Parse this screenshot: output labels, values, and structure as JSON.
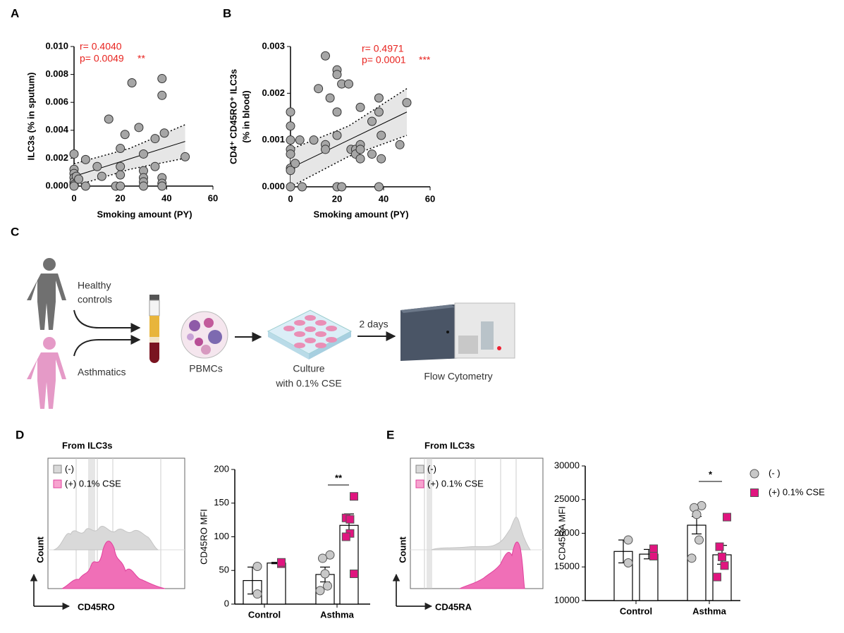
{
  "panels": [
    "A",
    "B",
    "C",
    "D",
    "E"
  ],
  "chart_data": [
    {
      "type": "scatter",
      "xlabel": "Smoking amount (PY)",
      "ylabel": [
        "ILC3s (% in sputum)"
      ],
      "xlim": [
        0,
        60
      ],
      "xticks": [
        0,
        20,
        40,
        60
      ],
      "ylim": [
        0,
        0.01
      ],
      "yticks": [
        {
          "value": 0,
          "label": "0.000"
        },
        {
          "value": 0.002,
          "label": "0.002"
        },
        {
          "value": 0.004,
          "label": "0.004"
        },
        {
          "value": 0.006,
          "label": "0.006"
        },
        {
          "value": 0.008,
          "label": "0.008"
        },
        {
          "value": 0.01,
          "label": "0.010"
        }
      ],
      "annotations": [
        "r= 0.4040",
        "p= 0.0049",
        "**"
      ],
      "series": [
        {
          "color": "#a6a6a6",
          "x": [
            0,
            0,
            0,
            0,
            0,
            0,
            0,
            1,
            2,
            5,
            5,
            10,
            12,
            15,
            18,
            20,
            20,
            20,
            20,
            22,
            25,
            28,
            30,
            30,
            30,
            30,
            30,
            35,
            35,
            38,
            38,
            38,
            38,
            38,
            39,
            48
          ],
          "y": [
            0.0023,
            0.0012,
            0.0009,
            0.0006,
            0.0003,
            0.0001,
            0,
            0.0007,
            0.0005,
            0.0019,
            0,
            0.0014,
            0.0007,
            0.0048,
            0,
            0.0027,
            0.0014,
            0.0008,
            0,
            0.0037,
            0.0074,
            0.0042,
            0.0023,
            0.0011,
            0.0006,
            0.0003,
            0,
            0.0034,
            0.0014,
            0.0077,
            0.0065,
            0.0006,
            0.0002,
            0,
            0.0038,
            0.0021
          ]
        }
      ],
      "fit": {
        "x": [
          0,
          24,
          48
        ],
        "y": [
          0.0007,
          0.00195,
          0.0032
        ],
        "lower": [
          0,
          0.0012,
          0.002
        ],
        "upper": [
          0.0016,
          0.0027,
          0.0044
        ]
      }
    },
    {
      "type": "scatter",
      "xlabel": "Smoking amount (PY)",
      "ylabel": [
        "CD4⁺ CD45RO⁺ ILC3s",
        "(% in blood)"
      ],
      "xlim": [
        0,
        60
      ],
      "xticks": [
        0,
        20,
        40,
        60
      ],
      "ylim": [
        0,
        0.003
      ],
      "yticks": [
        {
          "value": 0,
          "label": "0.000"
        },
        {
          "value": 0.001,
          "label": "0.001"
        },
        {
          "value": 0.002,
          "label": "0.002"
        },
        {
          "value": 0.003,
          "label": "0.003"
        }
      ],
      "annotations": [
        "r= 0.4971",
        "p= 0.0001",
        "***"
      ],
      "series": [
        {
          "color": "#a6a6a6",
          "x": [
            0,
            0,
            0,
            0,
            0,
            0,
            0,
            0,
            2,
            4,
            5,
            10,
            12,
            15,
            15,
            15,
            17,
            20,
            20,
            20,
            20,
            20,
            22,
            22,
            25,
            26,
            28,
            28,
            30,
            30,
            30,
            30,
            35,
            35,
            38,
            38,
            39,
            39,
            38,
            47,
            50
          ],
          "y": [
            0.0016,
            0.0013,
            0.001,
            0.0008,
            0.0007,
            0.0004,
            0.00035,
            0,
            0.0005,
            0.001,
            0,
            0.001,
            0.0021,
            0.0028,
            0.0009,
            0.0008,
            0.0019,
            0.0025,
            0.0024,
            0.0016,
            0.0011,
            0,
            0.0022,
            0,
            0.0022,
            0.0008,
            0.0008,
            0.0007,
            0.0017,
            0.0009,
            0.0008,
            0.0006,
            0.0014,
            0.0007,
            0.0019,
            0.0016,
            0.0011,
            0.0006,
            0,
            0.0009,
            0.0018
          ]
        }
      ],
      "fit": {
        "x": [
          0,
          25,
          50
        ],
        "y": [
          0.0004,
          0.001,
          0.0016
        ],
        "lower": [
          0,
          0.00065,
          0.0011
        ],
        "upper": [
          0.0008,
          0.0013,
          0.0021
        ]
      }
    },
    {
      "type": "bar",
      "ylabel": [
        "CD45RO MFI"
      ],
      "categories": [
        "Control",
        "Asthma"
      ],
      "ylim": [
        0,
        200
      ],
      "yticks": [
        0,
        50,
        100,
        150,
        200
      ],
      "annotations": [
        "**"
      ],
      "series": [
        {
          "color": "#c8c8c8",
          "marker": "circle",
          "values": [
            35,
            44
          ],
          "errors": [
            20,
            11
          ],
          "points": [
            [
              56,
              15
            ],
            [
              73,
              68,
              45,
              27,
              20
            ]
          ]
        },
        {
          "color": "#e0157f",
          "marker": "square",
          "values": [
            61,
            117
          ],
          "errors": [
            1,
            17
          ],
          "points": [
            [
              60,
              62
            ],
            [
              160,
              128,
              126,
              105,
              100,
              45
            ]
          ]
        }
      ]
    },
    {
      "type": "bar",
      "ylabel": [
        "CD45RA MFI"
      ],
      "categories": [
        "Control",
        "Asthma"
      ],
      "ylim": [
        10000,
        30000
      ],
      "yticks": [
        10000,
        15000,
        20000,
        25000,
        30000
      ],
      "annotations": [
        "*"
      ],
      "series": [
        {
          "name": "(- )",
          "color": "#c8c8c8",
          "marker": "circle",
          "values": [
            17300,
            21200
          ],
          "errors": [
            1700,
            1300
          ],
          "points": [
            [
              19000,
              15600
            ],
            [
              24100,
              23800,
              22800,
              19000,
              16300
            ]
          ]
        },
        {
          "name": "(+) 0.1% CSE",
          "color": "#e0157f",
          "marker": "square",
          "values": [
            16900,
            16800
          ],
          "errors": [
            700,
            1400
          ],
          "points": [
            [
              17700,
              16600
            ],
            [
              22400,
              18000,
              16500,
              15200,
              13500
            ]
          ]
        }
      ]
    }
  ],
  "diagram": {
    "healthy": [
      "Healthy",
      "controls"
    ],
    "asthmatics": "Asthmatics",
    "pbmcs": "PBMCs",
    "culture": [
      "Culture",
      "with 0.1% CSE"
    ],
    "days": "2 days",
    "flow": "Flow Cytometry"
  },
  "flow": [
    {
      "title": "From ILC3s",
      "legend": [
        "(-)",
        "(+) 0.1%  CSE"
      ],
      "ylabel": "Count",
      "xlabel": "CD45RO"
    },
    {
      "title": "From ILC3s",
      "legend": [
        "(-)",
        "(+) 0.1%  CSE"
      ],
      "ylabel": "Count",
      "xlabel": "CD45RA"
    }
  ]
}
